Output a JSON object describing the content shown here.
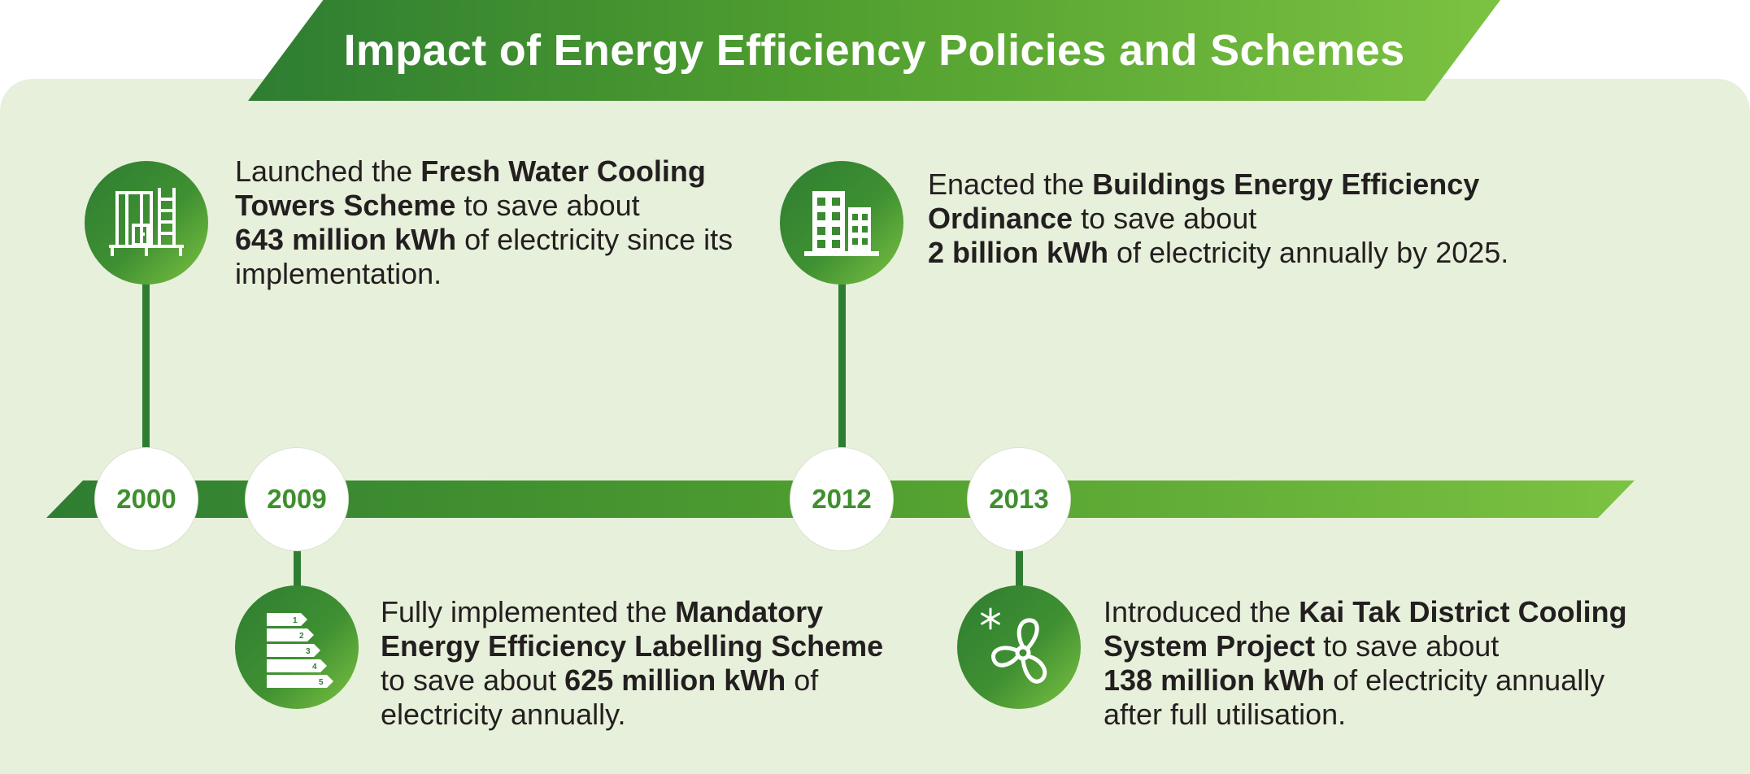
{
  "title": "Impact of Energy Efficiency Policies and Schemes",
  "colors": {
    "dark_green": "#2e7d32",
    "light_green": "#7cc242",
    "panel_bg": "#e7f0da",
    "year_text": "#3f8f2e",
    "body_text": "#231f20"
  },
  "events": [
    {
      "year": "2000",
      "icon": "cooling-tower-icon",
      "parts": [
        "Launched the ",
        "Fresh Water Cooling",
        "Towers Scheme",
        " to save about",
        "643 million kWh",
        " of electricity since its",
        "implementation."
      ]
    },
    {
      "year": "2009",
      "icon": "energy-label-icon",
      "label_numbers": [
        "1",
        "2",
        "3",
        "4",
        "5"
      ],
      "parts": [
        "Fully implemented the ",
        "Mandatory",
        "Energy Efficiency Labelling Scheme",
        "to save about ",
        "625 million kWh",
        " of",
        "electricity annually."
      ]
    },
    {
      "year": "2012",
      "icon": "buildings-icon",
      "parts": [
        "Enacted the ",
        "Buildings Energy Efficiency",
        "Ordinance",
        " to save about",
        "2 billion kWh",
        " of electricity annually by 2025."
      ]
    },
    {
      "year": "2013",
      "icon": "fan-snowflake-icon",
      "parts": [
        "Introduced the ",
        "Kai Tak District Cooling",
        "System Project",
        " to save about",
        "138 million kWh",
        " of electricity annually",
        "after full utilisation."
      ]
    }
  ]
}
